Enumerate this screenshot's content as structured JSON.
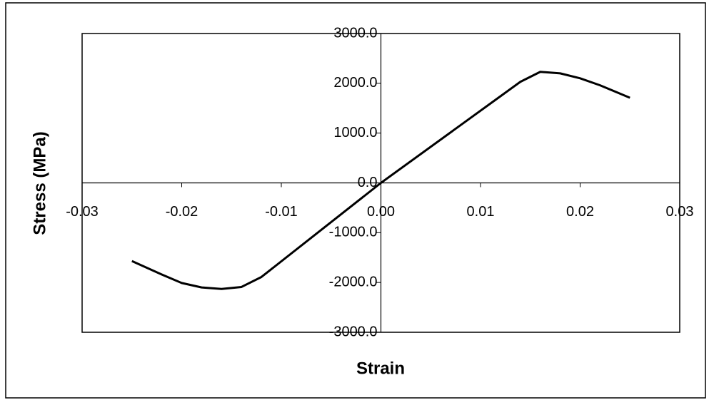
{
  "chart_data": {
    "type": "line",
    "xlabel": "Strain",
    "ylabel": "Stress (MPa)",
    "x": [
      -0.025,
      -0.022,
      -0.02,
      -0.018,
      -0.016,
      -0.014,
      -0.012,
      0,
      0.012,
      0.014,
      0.016,
      0.018,
      0.02,
      0.022,
      0.025
    ],
    "series": [
      {
        "color": "#000000",
        "values": [
          -1570,
          -1840,
          -2010,
          -2100,
          -2130,
          -2090,
          -1890,
          0,
          1740,
          2030,
          2230,
          2200,
          2100,
          1960,
          1710
        ]
      }
    ],
    "xlim": [
      -0.03,
      0.03
    ],
    "xticks": [
      -0.03,
      -0.02,
      -0.01,
      {
        "value": 0,
        "label": "0.00"
      },
      0.01,
      0.02,
      0.03
    ],
    "ylim": [
      -3000,
      3000
    ],
    "yticks": [
      {
        "value": -3000,
        "label": "-3000.0"
      },
      {
        "value": -2000,
        "label": "-2000.0"
      },
      {
        "value": -1000,
        "label": "-1000.0"
      },
      {
        "value": 0,
        "label": "0.0"
      },
      {
        "value": 1000,
        "label": "1000.0"
      },
      {
        "value": 2000,
        "label": "2000.0"
      },
      {
        "value": 3000,
        "label": "3000.0"
      }
    ],
    "grid": false
  }
}
